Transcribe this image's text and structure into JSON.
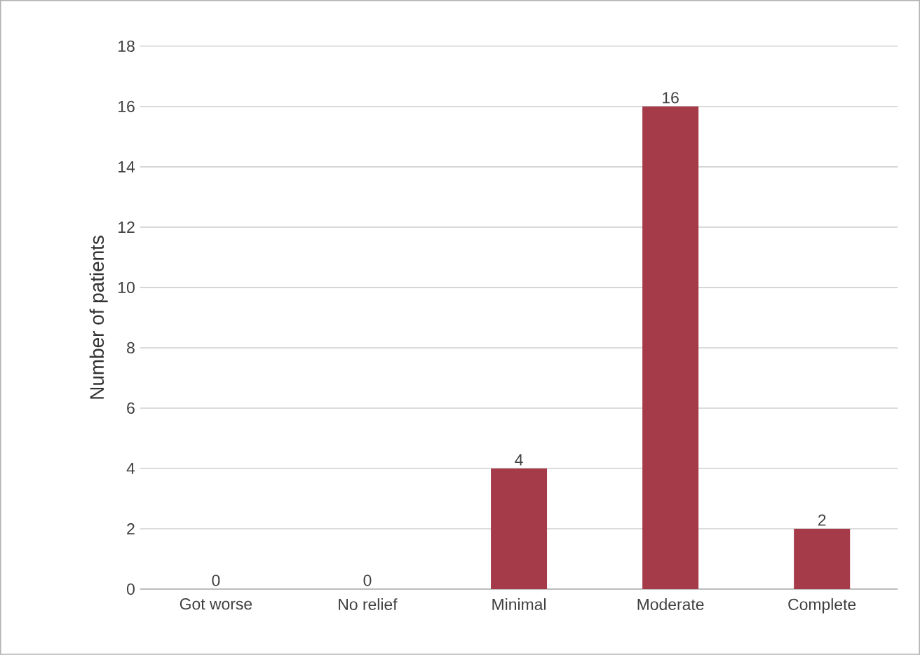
{
  "chart_data": {
    "type": "bar",
    "ylabel": "Number of patients",
    "categories": [
      "Got worse",
      "No relief",
      "Minimal",
      "Moderate",
      "Complete"
    ],
    "values": [
      0,
      0,
      4,
      16,
      2
    ],
    "color": "#a53b49",
    "ylim": [
      0,
      18
    ],
    "yticks": [
      0,
      2,
      4,
      6,
      8,
      10,
      12,
      14,
      16,
      18
    ],
    "grid": "y",
    "data_labels": true
  }
}
